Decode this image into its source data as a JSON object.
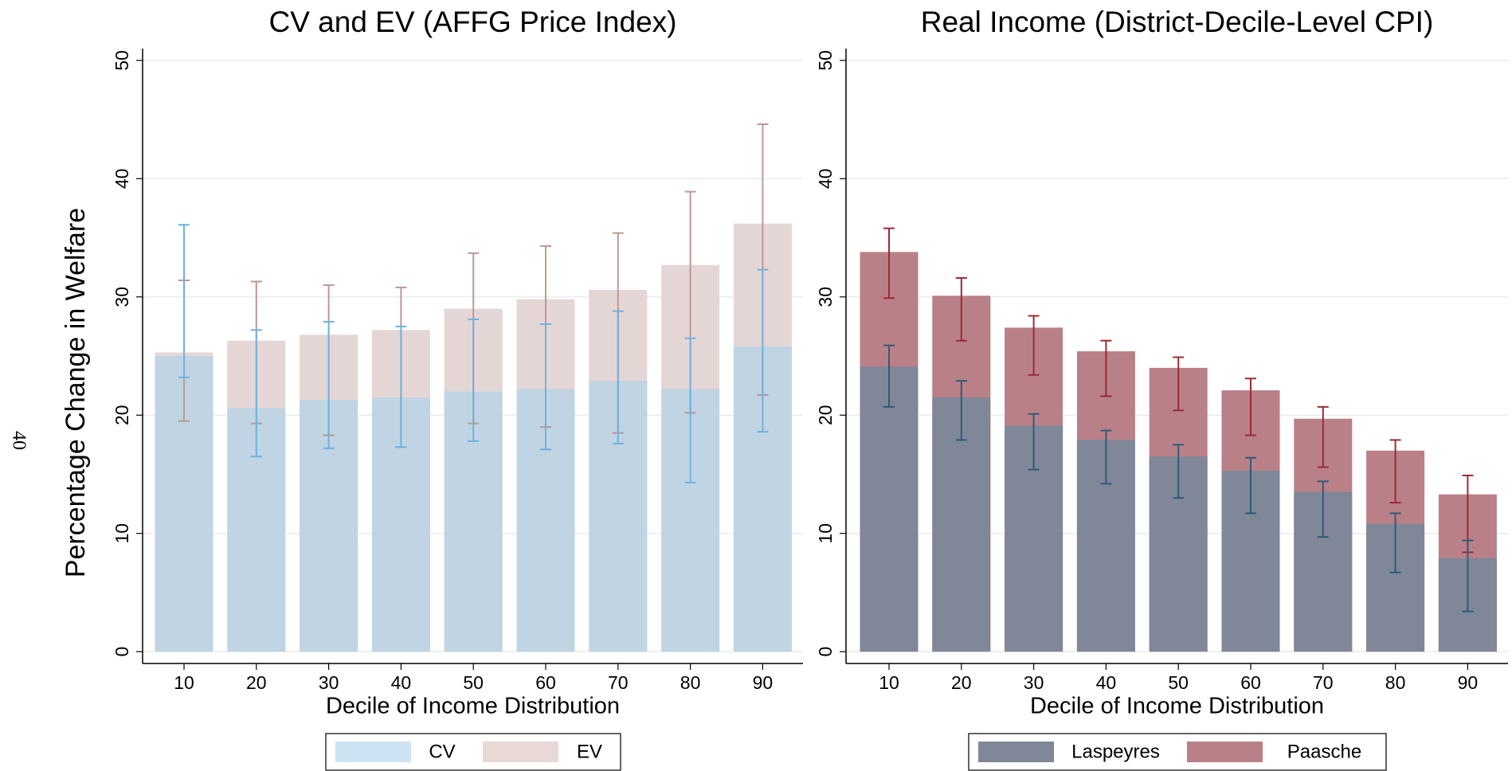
{
  "page_number": "40",
  "chart_data": [
    {
      "type": "bar",
      "title": "CV and EV (AFFG Price Index)",
      "y_label": "Percentage Change in Welfare",
      "x_label": "Decile of Income Distribution",
      "categories": [
        "10",
        "20",
        "30",
        "40",
        "50",
        "60",
        "70",
        "80",
        "90"
      ],
      "series": [
        {
          "name": "CV",
          "color": "#c0d4e3",
          "legend_color": "#cde3f3",
          "error_color": "#6cb2e2",
          "values": [
            25.0,
            20.6,
            21.3,
            21.5,
            22.0,
            22.2,
            22.9,
            22.2,
            25.8
          ],
          "ci_low": [
            23.2,
            16.5,
            17.2,
            17.3,
            17.8,
            17.1,
            17.6,
            14.3,
            18.6
          ],
          "ci_high": [
            36.1,
            27.2,
            27.9,
            27.5,
            28.1,
            27.7,
            28.8,
            26.5,
            32.3
          ]
        },
        {
          "name": "EV",
          "color": "#e5d6d6",
          "legend_color": "#e8d8d6",
          "error_color": "#bc9992",
          "values": [
            25.3,
            26.3,
            26.8,
            27.2,
            29.0,
            29.8,
            30.6,
            32.7,
            36.2
          ],
          "ci_low": [
            19.5,
            19.3,
            18.3,
            17.3,
            19.3,
            19.0,
            18.5,
            20.2,
            21.7
          ],
          "ci_high": [
            31.4,
            31.3,
            31.0,
            30.8,
            33.7,
            34.3,
            35.4,
            38.9,
            44.6
          ]
        }
      ],
      "ylim": [
        -1,
        51
      ],
      "yticks": [
        0,
        10,
        20,
        30,
        40,
        50
      ],
      "grid": true,
      "legend": "bottom"
    },
    {
      "type": "bar",
      "title": "Real Income (District-Decile-Level CPI)",
      "x_label": "Decile of Income Distribution",
      "categories": [
        "10",
        "20",
        "30",
        "40",
        "50",
        "60",
        "70",
        "80",
        "90"
      ],
      "series": [
        {
          "name": "Laspeyres",
          "color": "#7f8799",
          "legend_color": "#7f8799",
          "error_color": "#2d5b7a",
          "values": [
            24.1,
            21.5,
            19.1,
            17.9,
            16.5,
            15.3,
            13.5,
            10.8,
            7.9
          ],
          "ci_low": [
            20.7,
            17.9,
            15.4,
            14.2,
            13.0,
            11.7,
            9.7,
            6.7,
            3.4
          ],
          "ci_high": [
            25.9,
            22.9,
            20.1,
            18.7,
            17.5,
            16.4,
            14.4,
            11.7,
            9.4
          ]
        },
        {
          "name": "Paasche",
          "color": "#b98087",
          "legend_color": "#b98087",
          "error_color": "#9c2a36",
          "values": [
            33.8,
            30.1,
            27.4,
            25.4,
            24.0,
            22.1,
            19.7,
            17.0,
            13.3
          ],
          "ci_low": [
            29.9,
            26.3,
            23.4,
            21.6,
            20.4,
            18.3,
            15.6,
            12.6,
            8.4
          ],
          "ci_high": [
            35.8,
            31.6,
            28.4,
            26.3,
            24.9,
            23.1,
            20.7,
            17.9,
            14.9
          ]
        }
      ],
      "ylim": [
        -1,
        51
      ],
      "yticks": [
        0,
        10,
        20,
        30,
        40,
        50
      ],
      "grid": true,
      "legend": "bottom"
    }
  ]
}
